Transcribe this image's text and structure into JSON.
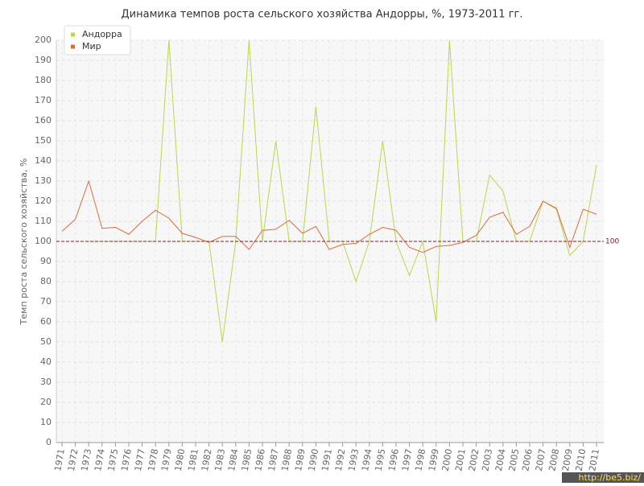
{
  "chart_data": {
    "type": "line",
    "title": "Динамика темпов роста сельского хозяйства Андорры, %, 1973-2011 гг.",
    "y_label": "Темп роста сельского хозяйства, %",
    "categories": [
      "1971",
      "1972",
      "1973",
      "1974",
      "1975",
      "1976",
      "1977",
      "1978",
      "1979",
      "1980",
      "1981",
      "1982",
      "1983",
      "1984",
      "1985",
      "1986",
      "1987",
      "1988",
      "1989",
      "1990",
      "1991",
      "1992",
      "1993",
      "1994",
      "1995",
      "1996",
      "1997",
      "1998",
      "1999",
      "2000",
      "2001",
      "2002",
      "2003",
      "2004",
      "2005",
      "2006",
      "2007",
      "2008",
      "2009",
      "2010",
      "2011"
    ],
    "series": [
      {
        "name": "Андорра",
        "color": "#b8d84a",
        "values": [
          null,
          null,
          100,
          100,
          100,
          100,
          100,
          100,
          200,
          100,
          100,
          100,
          50,
          100,
          200,
          100,
          150,
          100,
          100,
          167,
          100,
          100,
          80,
          100,
          150,
          100,
          83,
          100,
          60,
          200,
          100,
          100,
          133,
          125,
          100,
          100,
          120,
          116,
          93,
          100,
          138
        ]
      },
      {
        "name": "Мир",
        "color": "#e06a3a",
        "values": [
          105,
          111,
          130,
          106.5,
          107,
          103.5,
          110,
          115.5,
          111.5,
          104,
          102,
          99.5,
          102.5,
          102.5,
          96,
          105.5,
          106,
          110.5,
          104,
          107.5,
          96,
          98.5,
          99,
          103.5,
          107,
          105.5,
          97,
          94.5,
          97.5,
          98,
          99.5,
          103,
          112,
          114.5,
          103.5,
          107.5,
          120,
          116.5,
          97,
          116,
          113.5
        ]
      }
    ],
    "ylim": [
      0,
      200
    ],
    "yticks": [
      0,
      10,
      20,
      30,
      40,
      50,
      60,
      70,
      80,
      90,
      100,
      110,
      120,
      130,
      140,
      150,
      160,
      170,
      180,
      190,
      200
    ],
    "grid": true,
    "reference_line": 100,
    "legend": "top-left",
    "watermark": "http://be5.biz/"
  }
}
